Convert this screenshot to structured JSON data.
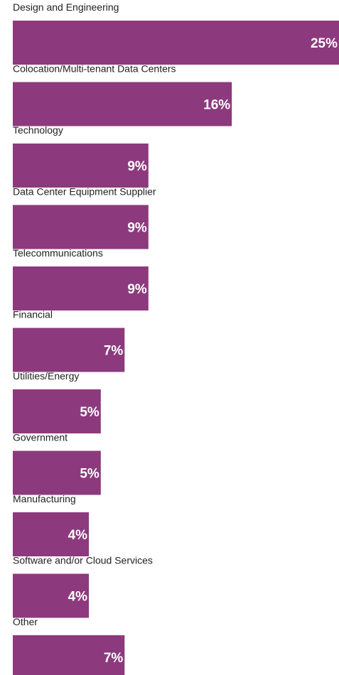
{
  "chart_data": {
    "type": "bar",
    "orientation": "horizontal",
    "color": "#8c3a7d",
    "categories": [
      "Design and Engineering",
      "Colocation/Multi-tenant Data Centers",
      "Technology",
      "Data Center Equipment Supplier",
      "Telecommunications",
      "Financial",
      "Utilities/Energy",
      "Government",
      "Manufacturing",
      "Software and/or Cloud Services",
      "Other"
    ],
    "values": [
      25,
      16,
      9,
      9,
      9,
      7,
      5,
      5,
      4,
      4,
      7
    ],
    "value_labels": [
      "25%",
      "16%",
      "9%",
      "9%",
      "9%",
      "7%",
      "5%",
      "5%",
      "4%",
      "4%",
      "7%"
    ]
  }
}
